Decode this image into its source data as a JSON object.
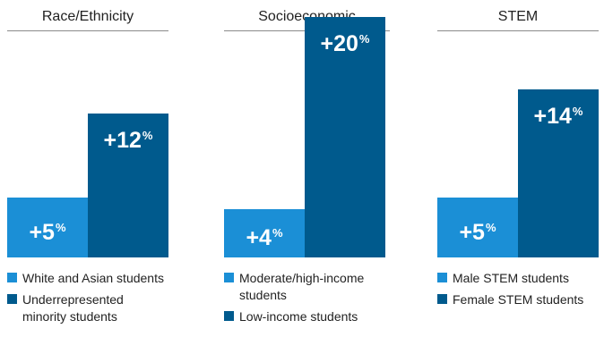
{
  "colors": {
    "light": "#1b8fd6",
    "dark": "#005a8d",
    "rule": "#8a8a8a",
    "text": "#222222"
  },
  "chart_data": [
    {
      "type": "bar",
      "title": "Race/Ethnicity",
      "series": [
        {
          "name": "White and Asian students",
          "value": 5,
          "label": "+5",
          "unit": "%"
        },
        {
          "name": "Underrepresented minority students",
          "value": 12,
          "label": "+12",
          "unit": "%"
        }
      ]
    },
    {
      "type": "bar",
      "title": "Socioeconomic",
      "series": [
        {
          "name": "Moderate/high-income students",
          "value": 4,
          "label": "+4",
          "unit": "%"
        },
        {
          "name": "Low-income students",
          "value": 20,
          "label": "+20",
          "unit": "%"
        }
      ]
    },
    {
      "type": "bar",
      "title": "STEM",
      "series": [
        {
          "name": "Male STEM students",
          "value": 5,
          "label": "+5",
          "unit": "%"
        },
        {
          "name": "Female STEM students",
          "value": 14,
          "label": "+14",
          "unit": "%"
        }
      ]
    }
  ]
}
